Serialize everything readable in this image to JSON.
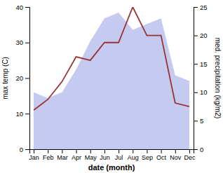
{
  "chart_data": {
    "type": "line",
    "xlabel": "date (month)",
    "ylabel": "max temp (C)",
    "y2label": "med. precipitation (kg/m2)",
    "categories": [
      "Jan",
      "Feb",
      "Mar",
      "Apr",
      "May",
      "Jun",
      "Jul",
      "Aug",
      "Sep",
      "Oct",
      "Nov",
      "Dec"
    ],
    "series": [
      {
        "type": "area",
        "axis": "y2",
        "color": "#c5caf0",
        "values": [
          10,
          9,
          10,
          14,
          19,
          23,
          24,
          21,
          22,
          23,
          13,
          12
        ]
      },
      {
        "type": "line",
        "color": "#993333",
        "values": [
          11,
          14,
          19,
          26,
          25,
          30,
          30,
          40,
          32,
          32,
          13,
          12
        ]
      }
    ],
    "ylim": [
      0,
      40
    ],
    "yticks": [
      0,
      10,
      20,
      30,
      40
    ],
    "y2lim": [
      0,
      25
    ],
    "y2ticks": [
      0,
      5,
      10,
      15,
      20,
      25
    ],
    "grid": false
  }
}
